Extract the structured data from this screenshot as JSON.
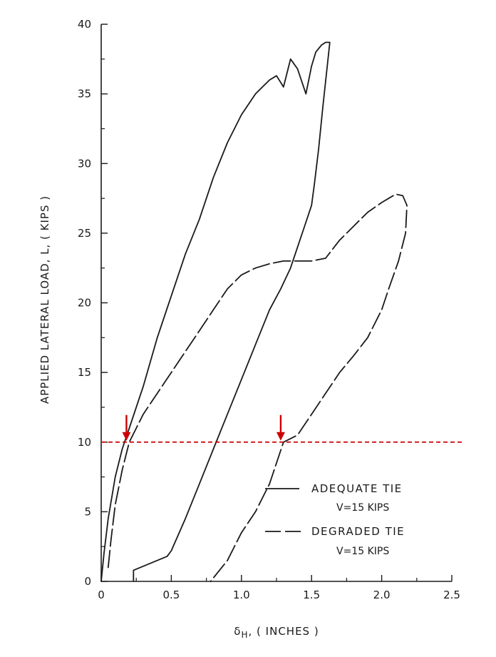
{
  "chart_data": {
    "type": "line",
    "title": "",
    "xlabel": {
      "main": "δ",
      "sub": "H",
      "rest": ", ( INCHES )"
    },
    "ylabel": "APPLIED LATERAL LOAD, L, ( KIPS )",
    "xlim": [
      0,
      2.5
    ],
    "ylim": [
      0,
      40
    ],
    "xticks": [
      0,
      0.5,
      1.0,
      1.5,
      2.0,
      2.5
    ],
    "xtick_labels": [
      "0",
      "0.5",
      "1.0",
      "1.5",
      "2.0",
      "2.5"
    ],
    "yticks": [
      0,
      5,
      10,
      15,
      20,
      25,
      30,
      35,
      40
    ],
    "ytick_labels": [
      "0",
      "5",
      "10",
      "15",
      "20",
      "25",
      "30",
      "35",
      "40"
    ],
    "grid": false,
    "legend_position": "lower-right",
    "series": [
      {
        "name": "ADEQUATE TIE",
        "note": "V=15 KIPS",
        "style": "solid",
        "x": [
          0,
          0.02,
          0.05,
          0.1,
          0.15,
          0.2,
          0.3,
          0.4,
          0.5,
          0.6,
          0.7,
          0.8,
          0.9,
          1.0,
          1.1,
          1.2,
          1.25,
          1.3,
          1.35,
          1.4,
          1.46,
          1.5,
          1.53,
          1.57,
          1.6,
          1.63,
          1.58,
          1.55,
          1.52,
          1.5,
          1.45,
          1.4,
          1.35,
          1.28,
          1.2,
          1.1,
          1.0,
          0.9,
          0.8,
          0.7,
          0.6,
          0.5,
          0.47,
          0.23,
          0.23
        ],
        "y": [
          0,
          2,
          4.5,
          7.5,
          9.5,
          11,
          14,
          17.5,
          20.5,
          23.5,
          26,
          29,
          31.5,
          33.5,
          35,
          36,
          36.3,
          35.5,
          37.5,
          36.8,
          35,
          37,
          38,
          38.5,
          38.7,
          38.7,
          34,
          31,
          28.5,
          27,
          25.5,
          24,
          22.5,
          21,
          19.5,
          17,
          14.5,
          12,
          9.5,
          7,
          4.5,
          2.2,
          1.8,
          0.8,
          0
        ]
      },
      {
        "name": "DEGRADED TIE",
        "note": "V=15 KIPS",
        "style": "dashed",
        "x": [
          0.05,
          0.07,
          0.1,
          0.15,
          0.2,
          0.3,
          0.4,
          0.5,
          0.6,
          0.7,
          0.8,
          0.9,
          1.0,
          1.1,
          1.2,
          1.3,
          1.4,
          1.5,
          1.6,
          1.7,
          1.8,
          1.9,
          2.0,
          2.1,
          2.15,
          2.18,
          2.17,
          2.12,
          2.05,
          2.0,
          1.9,
          1.8,
          1.7,
          1.6,
          1.5,
          1.4,
          1.3,
          1.25,
          1.2,
          1.1,
          1.0,
          0.9,
          0.82,
          0.78
        ],
        "y": [
          1,
          3,
          5.5,
          8,
          10,
          12,
          13.5,
          15,
          16.5,
          18,
          19.5,
          21,
          22,
          22.5,
          22.8,
          23,
          23,
          23,
          23.2,
          24.5,
          25.5,
          26.5,
          27.2,
          27.8,
          27.7,
          27,
          25,
          23,
          21,
          19.5,
          17.5,
          16.2,
          15,
          13.5,
          12,
          10.5,
          10,
          8.5,
          7,
          5,
          3.5,
          1.5,
          0.5,
          0
        ]
      }
    ],
    "annotations": [
      {
        "type": "hline",
        "y": 10,
        "style": "dashed",
        "color": "#cc0000"
      },
      {
        "type": "arrow",
        "x": 0.18,
        "y": 10,
        "color": "#cc0000",
        "direction": "down"
      },
      {
        "type": "arrow",
        "x": 1.28,
        "y": 10,
        "color": "#cc0000",
        "direction": "down"
      }
    ],
    "legend": [
      {
        "label": "ADEQUATE  TIE",
        "note": "V=15 KIPS",
        "style": "solid"
      },
      {
        "label": "DEGRADED  TIE",
        "note": "V=15 KIPS",
        "style": "dashed"
      }
    ]
  }
}
